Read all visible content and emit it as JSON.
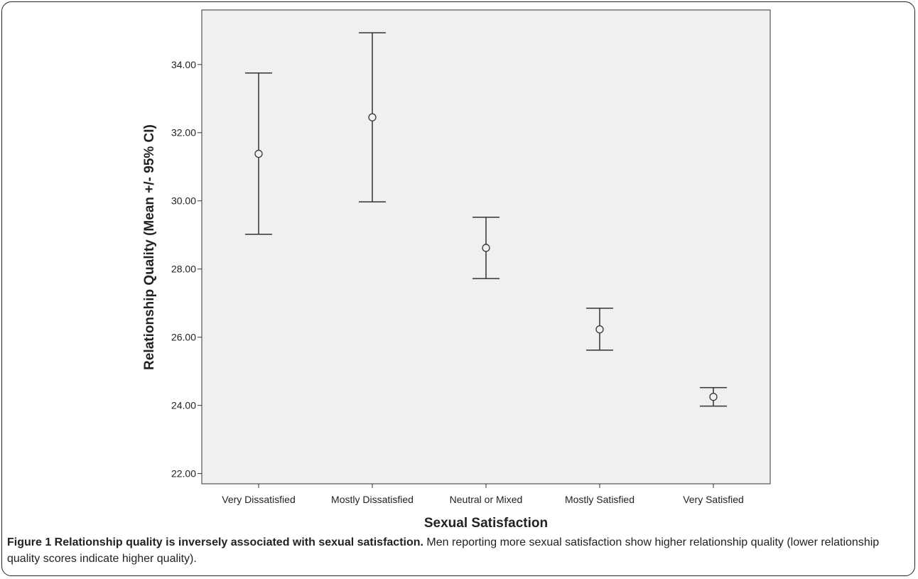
{
  "figure": {
    "caption_bold": "Figure 1 Relationship quality is inversely associated with sexual satisfaction.",
    "caption_text": " Men reporting more sexual satisfaction show higher relationship quality (lower relationship quality scores indicate higher quality)."
  },
  "chart_data": {
    "type": "errorbar",
    "title": "",
    "xlabel": "Sexual Satisfaction",
    "ylabel": "Relationship Quality (Mean +/- 95% CI)",
    "categories": [
      "Very Dissatisfied",
      "Mostly Dissatisfied",
      "Neutral or Mixed",
      "Mostly Satisfied",
      "Very Satisfied"
    ],
    "mean": [
      31.38,
      32.45,
      28.62,
      26.23,
      24.25
    ],
    "lower": [
      29.02,
      29.97,
      27.72,
      25.62,
      23.98
    ],
    "upper": [
      33.75,
      34.93,
      29.52,
      26.85,
      24.52
    ],
    "ylim": [
      21.7,
      35.6
    ],
    "yticks": [
      "22.00",
      "24.00",
      "26.00",
      "28.00",
      "30.00",
      "32.00",
      "34.00"
    ],
    "grid": false,
    "legend": "none",
    "colors": {
      "plot_background": "#f0f0f0",
      "line": "#333333"
    }
  }
}
